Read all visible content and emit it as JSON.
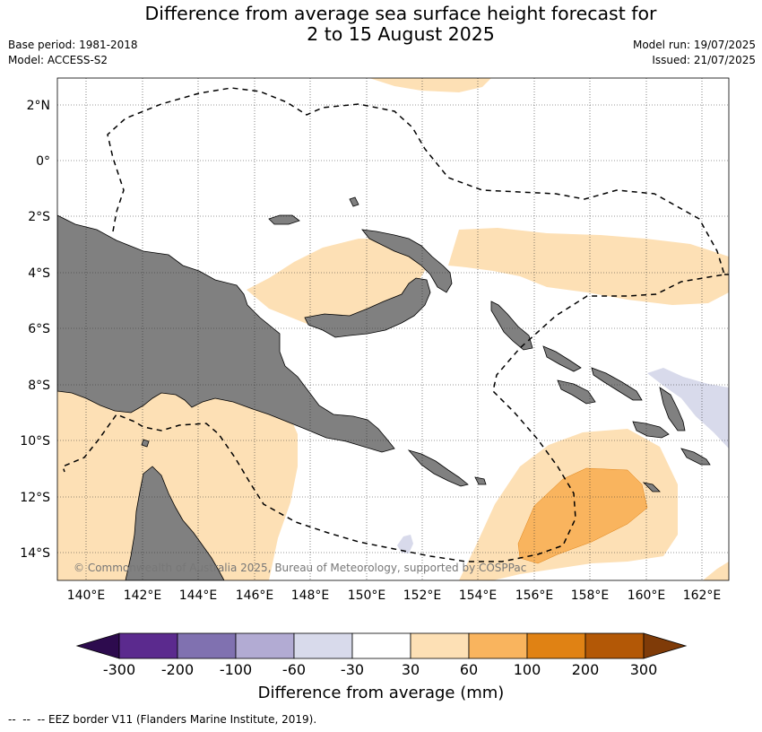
{
  "header": {
    "title_line1": "Difference from average sea surface height forecast for",
    "title_line2": "2 to 15 August 2025",
    "base_period": "Base period: 1981-2018",
    "model": "Model: ACCESS-S2",
    "model_run": "Model run: 19/07/2025",
    "issued": "Issued: 21/07/2025"
  },
  "map": {
    "region": "Papua New Guinea and Solomon Islands",
    "lon_ticks": [
      "140°E",
      "142°E",
      "144°E",
      "146°E",
      "148°E",
      "150°E",
      "152°E",
      "154°E",
      "156°E",
      "158°E",
      "160°E",
      "162°E"
    ],
    "lat_ticks": [
      "2°N",
      "0°",
      "2°S",
      "4°S",
      "6°S",
      "8°S",
      "10°S",
      "12°S",
      "14°S"
    ],
    "gridlines": true,
    "land_color": "#808080",
    "copyright": "© Commonwealth of Australia 2025, Bureau of Meteorology, supported by COSPPac"
  },
  "colorbar": {
    "label": "Difference from average (mm)",
    "tick_labels": [
      "-300",
      "-200",
      "-100",
      "-60",
      "-30",
      "30",
      "60",
      "100",
      "200",
      "300"
    ],
    "colors": [
      "#2d0b4e",
      "#5b2a8e",
      "#8071b0",
      "#b2abd3",
      "#d8daeb",
      "#ffffff",
      "#fde0b5",
      "#f9b45e",
      "#e08214",
      "#b35806",
      "#7f3b08"
    ]
  },
  "legend": {
    "eez_note": "--  --  -- EEZ border V11 (Flanders Marine Institute, 2019)."
  }
}
